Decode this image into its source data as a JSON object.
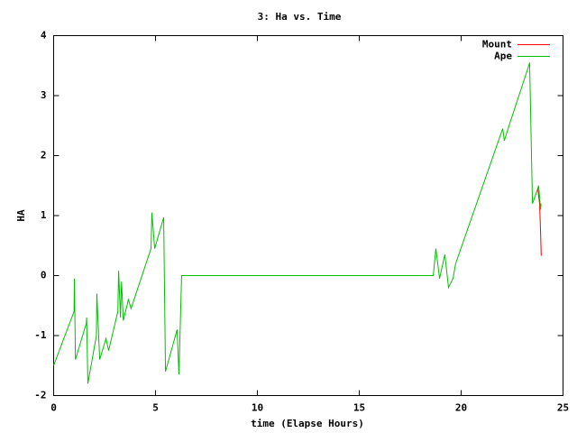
{
  "chart_data": {
    "type": "line",
    "title": "3: Ha vs. Time",
    "x_label": "time (Elapse Hours)",
    "y_label": "HA",
    "xlim": [
      0,
      25
    ],
    "ylim": [
      -2,
      4
    ],
    "xticks": [
      0,
      5,
      10,
      15,
      20,
      25
    ],
    "yticks": [
      -2,
      -1,
      0,
      1,
      2,
      3,
      4
    ],
    "legend": "top-right",
    "series": [
      {
        "name": "Mount",
        "color": "#ff0000",
        "x": [
          23.76,
          23.85,
          23.9,
          23.93
        ],
        "values": [
          1.45,
          1.2,
          0.7,
          0.33
        ]
      },
      {
        "name": "Ape",
        "color": "#00c000",
        "x": [
          0,
          1.0,
          1.02,
          1.07,
          1.6,
          1.62,
          1.68,
          2.1,
          2.12,
          2.26,
          2.57,
          2.7,
          3.15,
          3.19,
          3.28,
          3.33,
          3.42,
          3.67,
          3.8,
          4.78,
          4.82,
          4.96,
          5.4,
          5.49,
          6.06,
          6.15,
          6.28,
          18.54,
          18.63,
          18.76,
          18.94,
          19.2,
          19.38,
          19.6,
          19.73,
          22.04,
          22.12,
          22.4,
          23.32,
          23.36,
          23.5,
          23.76,
          23.8,
          23.9,
          23.92
        ],
        "values": [
          -1.5,
          -0.6,
          -0.05,
          -1.4,
          -0.8,
          -0.7,
          -1.8,
          -1.0,
          -0.3,
          -1.4,
          -1.05,
          -1.25,
          -0.6,
          0.08,
          -0.7,
          -0.1,
          -0.75,
          -0.4,
          -0.55,
          0.45,
          1.05,
          0.45,
          0.97,
          -1.6,
          -0.9,
          -1.65,
          0.0,
          0.0,
          0.0,
          0.45,
          -0.05,
          0.35,
          -0.2,
          -0.05,
          0.2,
          2.45,
          2.25,
          2.55,
          3.5,
          3.55,
          1.2,
          1.45,
          1.5,
          1.1,
          1.2
        ]
      }
    ]
  }
}
